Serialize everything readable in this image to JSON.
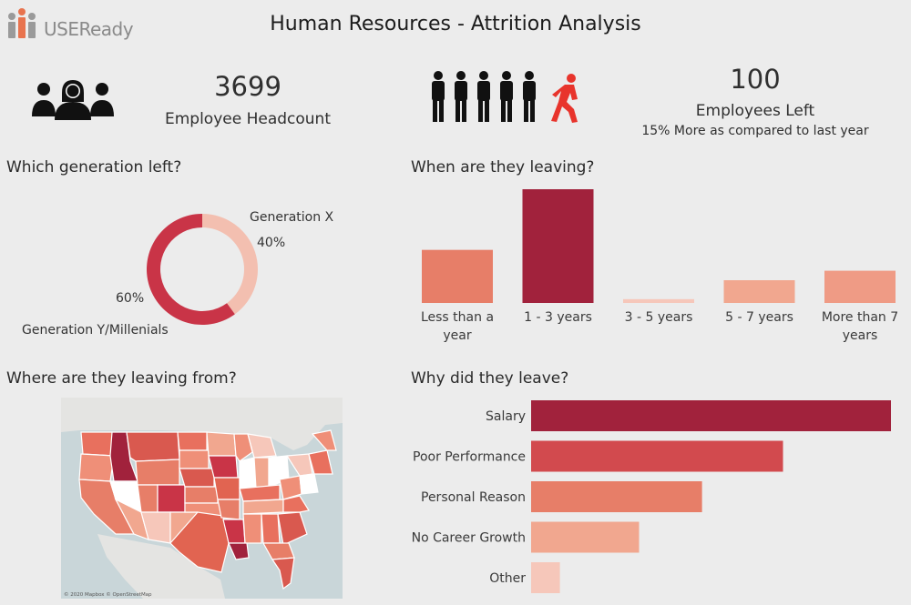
{
  "header": {
    "logo_text": "USEReady",
    "title": "Human Resources - Attrition Analysis"
  },
  "kpis": {
    "headcount": {
      "value": "3699",
      "label": "Employee Headcount",
      "icon": "people-icon"
    },
    "left": {
      "value": "100",
      "label": "Employees Left",
      "sub": "15% More as compared to last year",
      "icon": "walking-figures-icon"
    }
  },
  "sections": {
    "generation": "Which generation left?",
    "when": "When are they leaving?",
    "where": "Where are they leaving from?",
    "why": "Why did they leave?"
  },
  "map": {
    "attribution": "© 2020 Mapbox © OpenStreetMap"
  },
  "colors": {
    "background": "#ececec",
    "dark": "#a1223c",
    "mid": "#d24a4e",
    "salmon": "#e77e68",
    "light": "#f1a78f",
    "pale": "#f6c7ba",
    "red_figure": "#e8342c"
  },
  "chart_data": [
    {
      "type": "pie",
      "variant": "donut",
      "slices": [
        {
          "name": "Generation X",
          "value": 40,
          "label": "40%",
          "color": "#f3bfb0"
        },
        {
          "name": "Generation Y/Millenials",
          "value": 60,
          "label": "60%",
          "color": "#c93447"
        }
      ]
    },
    {
      "type": "bar",
      "orientation": "vertical",
      "categories": [
        "Less than a year",
        "1 - 3 years",
        "3 - 5 years",
        "5 - 7 years",
        "More than 7 years"
      ],
      "category_lines": [
        [
          "Less than a",
          "year"
        ],
        [
          "1 - 3 years"
        ],
        [
          "3 - 5 years"
        ],
        [
          "5 - 7 years"
        ],
        [
          "More than 7",
          "years"
        ]
      ],
      "values": [
        14,
        30,
        1,
        6,
        8.5
      ],
      "colors": [
        "#e77e68",
        "#a1223c",
        "#f6c7ba",
        "#f1a78f",
        "#ef9b85"
      ]
    },
    {
      "type": "bar",
      "orientation": "horizontal",
      "categories": [
        "Salary",
        "Poor Performance",
        "Personal Reason",
        "No Career Growth",
        "Other"
      ],
      "values": [
        40,
        28,
        19,
        12,
        3.2
      ],
      "colors": [
        "#a1223c",
        "#d24a4e",
        "#e77e68",
        "#f1a78f",
        "#f6c7ba"
      ]
    }
  ]
}
